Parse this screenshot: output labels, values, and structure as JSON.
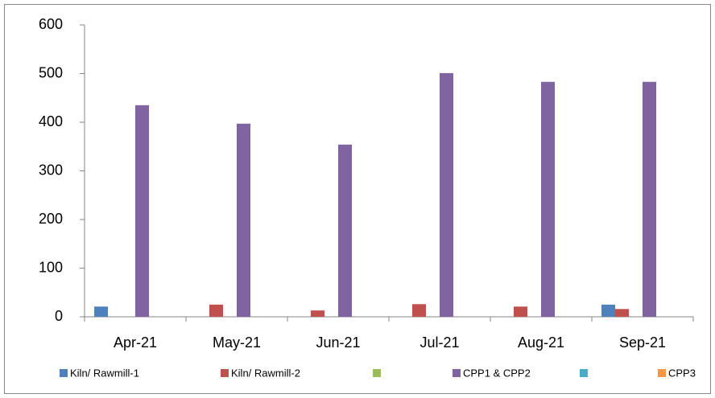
{
  "chart_data": {
    "type": "bar",
    "categories": [
      "Apr-21",
      "May-21",
      "Jun-21",
      "Jul-21",
      "Aug-21",
      "Sep-21"
    ],
    "series": [
      {
        "name": "Kiln/ Rawmill-1",
        "color": "#4f81bd",
        "values": [
          21,
          0,
          0,
          0,
          0,
          25
        ]
      },
      {
        "name": "Kiln/ Rawmill-2",
        "color": "#c0504d",
        "values": [
          0,
          25,
          13,
          26,
          21,
          16
        ]
      },
      {
        "color": "#9bbb59",
        "values": [
          0,
          0,
          0,
          0,
          0,
          0
        ]
      },
      {
        "name": "CPP1 & CPP2",
        "color": "#8064a2",
        "values": [
          435,
          397,
          354,
          501,
          483,
          483
        ]
      },
      {
        "color": "#4bacc6",
        "values": [
          0,
          0,
          0,
          0,
          0,
          0
        ]
      },
      {
        "name": "CPP3",
        "color": "#f79646",
        "values": [
          0,
          0,
          0,
          0,
          0,
          0
        ]
      }
    ],
    "ylim": [
      0,
      600
    ],
    "yticks": [
      0,
      100,
      200,
      300,
      400,
      500,
      600
    ],
    "grid": false
  }
}
